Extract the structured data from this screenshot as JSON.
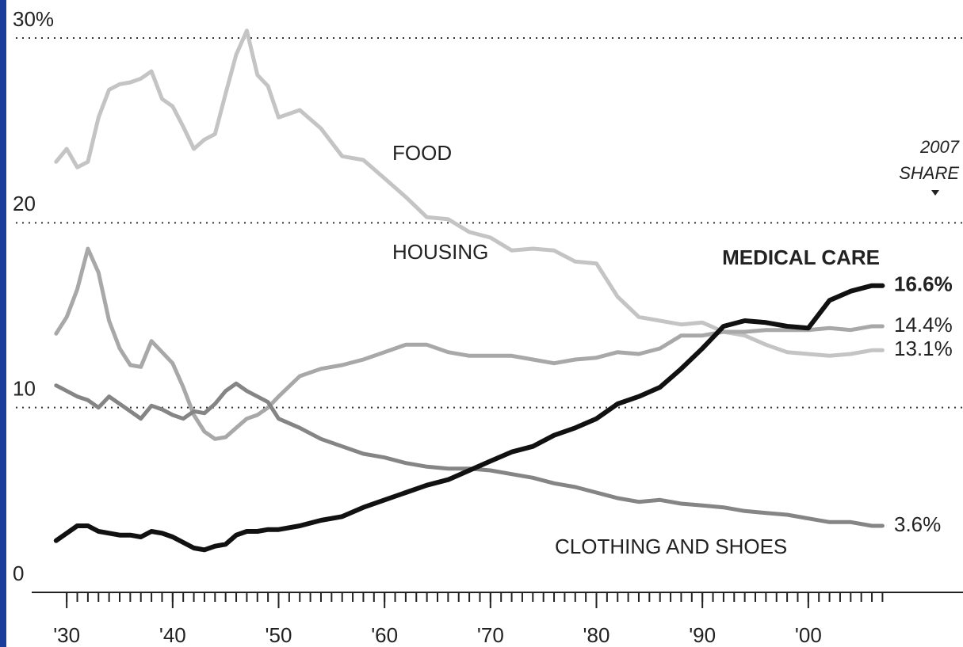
{
  "chart_data": {
    "type": "line",
    "annotation": [
      "2007",
      "SHARE"
    ],
    "x": [
      1929,
      1930,
      1931,
      1932,
      1933,
      1934,
      1935,
      1936,
      1937,
      1938,
      1939,
      1940,
      1941,
      1942,
      1943,
      1944,
      1945,
      1946,
      1947,
      1948,
      1949,
      1950,
      1952,
      1954,
      1956,
      1958,
      1960,
      1962,
      1964,
      1966,
      1968,
      1970,
      1972,
      1974,
      1976,
      1978,
      1980,
      1982,
      1984,
      1986,
      1988,
      1990,
      1992,
      1994,
      1996,
      1998,
      2000,
      2002,
      2004,
      2006,
      2007
    ],
    "series": [
      {
        "name": "FOOD",
        "color": "#c4c4c4",
        "value_labels": [
          null,
          null,
          null,
          null,
          null,
          null,
          null,
          null,
          null,
          null,
          null,
          null,
          null,
          null,
          null,
          null,
          null,
          null,
          null,
          null,
          null,
          null,
          null,
          null,
          null,
          null,
          null,
          null,
          null,
          null,
          null,
          null,
          null,
          null,
          null,
          null,
          null,
          null,
          null,
          null,
          null,
          null,
          null,
          null,
          null,
          null,
          null,
          null,
          null,
          null,
          "13.1%"
        ],
        "values": [
          23.3,
          24.0,
          23.0,
          23.3,
          25.7,
          27.2,
          27.5,
          27.6,
          27.8,
          28.2,
          26.7,
          26.3,
          25.2,
          24.0,
          24.5,
          24.8,
          27.0,
          29.1,
          30.4,
          28.0,
          27.4,
          25.7,
          26.1,
          25.1,
          23.6,
          23.4,
          22.4,
          21.4,
          20.3,
          20.2,
          19.5,
          19.2,
          18.5,
          18.6,
          18.5,
          17.9,
          17.8,
          16.0,
          14.9,
          14.7,
          14.5,
          14.6,
          14.1,
          13.9,
          13.4,
          13.0,
          12.9,
          12.8,
          12.9,
          13.1,
          13.1
        ]
      },
      {
        "name": "HOUSING",
        "color": "#a8a8a8",
        "value_labels": [
          null,
          null,
          null,
          null,
          null,
          null,
          null,
          null,
          null,
          null,
          null,
          null,
          null,
          null,
          null,
          null,
          null,
          null,
          null,
          null,
          null,
          null,
          null,
          null,
          null,
          null,
          null,
          null,
          null,
          null,
          null,
          null,
          null,
          null,
          null,
          null,
          null,
          null,
          null,
          null,
          null,
          null,
          null,
          null,
          null,
          null,
          null,
          null,
          null,
          null,
          "14.4%"
        ],
        "values": [
          14.0,
          14.9,
          16.4,
          18.6,
          17.3,
          14.7,
          13.2,
          12.3,
          12.2,
          13.6,
          13.0,
          12.4,
          11.1,
          9.6,
          8.7,
          8.3,
          8.4,
          8.9,
          9.4,
          9.6,
          10.0,
          10.6,
          11.7,
          12.1,
          12.3,
          12.6,
          13.0,
          13.4,
          13.4,
          13.0,
          12.8,
          12.8,
          12.8,
          12.6,
          12.4,
          12.6,
          12.7,
          13.0,
          12.9,
          13.2,
          13.9,
          13.9,
          14.1,
          14.1,
          14.2,
          14.2,
          14.2,
          14.3,
          14.2,
          14.4,
          14.4
        ]
      },
      {
        "name": "CLOTHING AND SHOES",
        "color": "#858585",
        "value_labels": [
          null,
          null,
          null,
          null,
          null,
          null,
          null,
          null,
          null,
          null,
          null,
          null,
          null,
          null,
          null,
          null,
          null,
          null,
          null,
          null,
          null,
          null,
          null,
          null,
          null,
          null,
          null,
          null,
          null,
          null,
          null,
          null,
          null,
          null,
          null,
          null,
          null,
          null,
          null,
          null,
          null,
          null,
          null,
          null,
          null,
          null,
          null,
          null,
          null,
          null,
          "3.6%"
        ],
        "values": [
          11.2,
          10.9,
          10.6,
          10.4,
          10.0,
          10.6,
          10.2,
          9.8,
          9.4,
          10.1,
          9.9,
          9.6,
          9.4,
          9.8,
          9.7,
          10.2,
          10.9,
          11.3,
          10.9,
          10.6,
          10.3,
          9.4,
          8.9,
          8.3,
          7.9,
          7.5,
          7.3,
          7.0,
          6.8,
          6.7,
          6.7,
          6.6,
          6.4,
          6.2,
          5.9,
          5.7,
          5.4,
          5.1,
          4.9,
          5.0,
          4.8,
          4.7,
          4.6,
          4.4,
          4.3,
          4.2,
          4.0,
          3.8,
          3.8,
          3.6,
          3.6
        ]
      },
      {
        "name": "MEDICAL CARE",
        "color": "#111111",
        "value_labels": [
          null,
          null,
          null,
          null,
          null,
          null,
          null,
          null,
          null,
          null,
          null,
          null,
          null,
          null,
          null,
          null,
          null,
          null,
          null,
          null,
          null,
          null,
          null,
          null,
          null,
          null,
          null,
          null,
          null,
          null,
          null,
          null,
          null,
          null,
          null,
          null,
          null,
          null,
          null,
          null,
          null,
          null,
          null,
          null,
          null,
          null,
          null,
          null,
          null,
          null,
          "16.6%"
        ],
        "values": [
          2.8,
          3.2,
          3.6,
          3.6,
          3.3,
          3.2,
          3.1,
          3.1,
          3.0,
          3.3,
          3.2,
          3.0,
          2.7,
          2.4,
          2.3,
          2.5,
          2.6,
          3.1,
          3.3,
          3.3,
          3.4,
          3.4,
          3.6,
          3.9,
          4.1,
          4.6,
          5.0,
          5.4,
          5.8,
          6.1,
          6.6,
          7.1,
          7.6,
          7.9,
          8.5,
          8.9,
          9.4,
          10.2,
          10.6,
          11.1,
          12.1,
          13.2,
          14.4,
          14.7,
          14.6,
          14.4,
          14.3,
          15.8,
          16.3,
          16.6,
          16.6
        ]
      }
    ],
    "xlim": [
      1925.2,
      2014.6
    ],
    "xticks": [
      {
        "value": 1930,
        "label": "'30"
      },
      {
        "value": 1940,
        "label": "'40"
      },
      {
        "value": 1950,
        "label": "'50"
      },
      {
        "value": 1960,
        "label": "'60"
      },
      {
        "value": 1970,
        "label": "'70"
      },
      {
        "value": 1980,
        "label": "'80"
      },
      {
        "value": 1990,
        "label": "'90"
      },
      {
        "value": 2000,
        "label": "'00"
      }
    ],
    "ylim": [
      0,
      30
    ],
    "yticks": [
      0,
      10,
      20,
      {
        "value": 30,
        "label": "30%"
      }
    ],
    "grid": true
  }
}
